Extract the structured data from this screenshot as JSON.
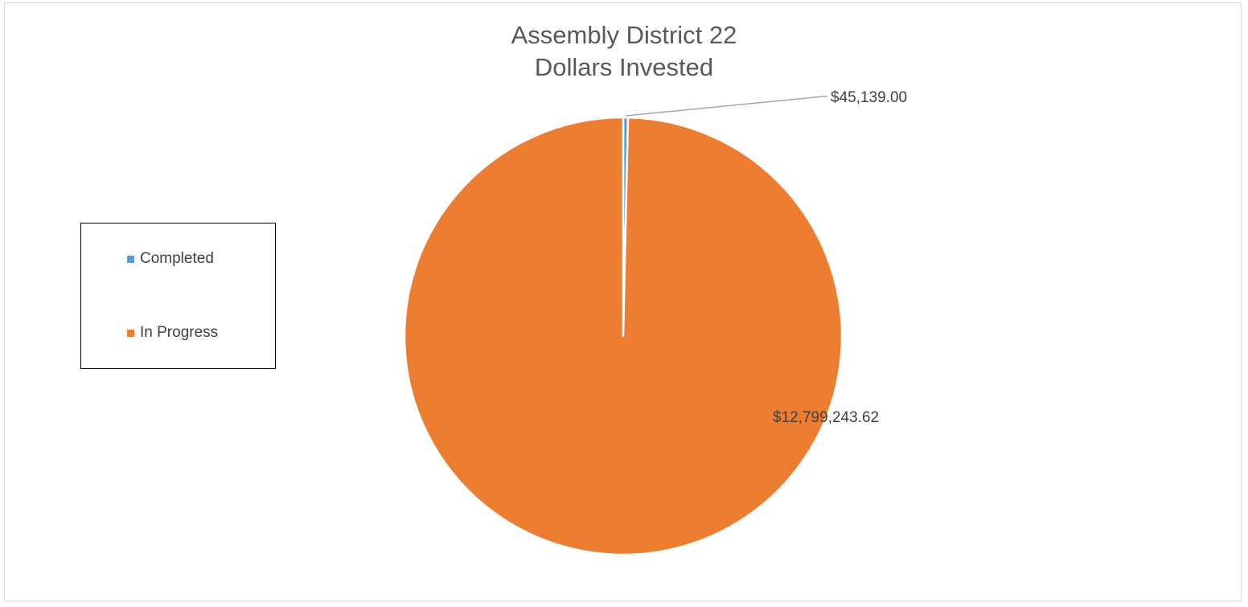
{
  "chart_data": {
    "type": "pie",
    "title_lines": [
      "Assembly District 22",
      "Dollars Invested"
    ],
    "categories": [
      "Completed",
      "In Progress"
    ],
    "values": [
      45139.0,
      12799243.62
    ],
    "data_labels": [
      "$45,139.00",
      "$12,799,243.62"
    ],
    "colors": [
      "#5B9BD5",
      "#ED7D31"
    ],
    "legend_position": "left",
    "start_angle_deg": 0,
    "direction": "clockwise"
  }
}
